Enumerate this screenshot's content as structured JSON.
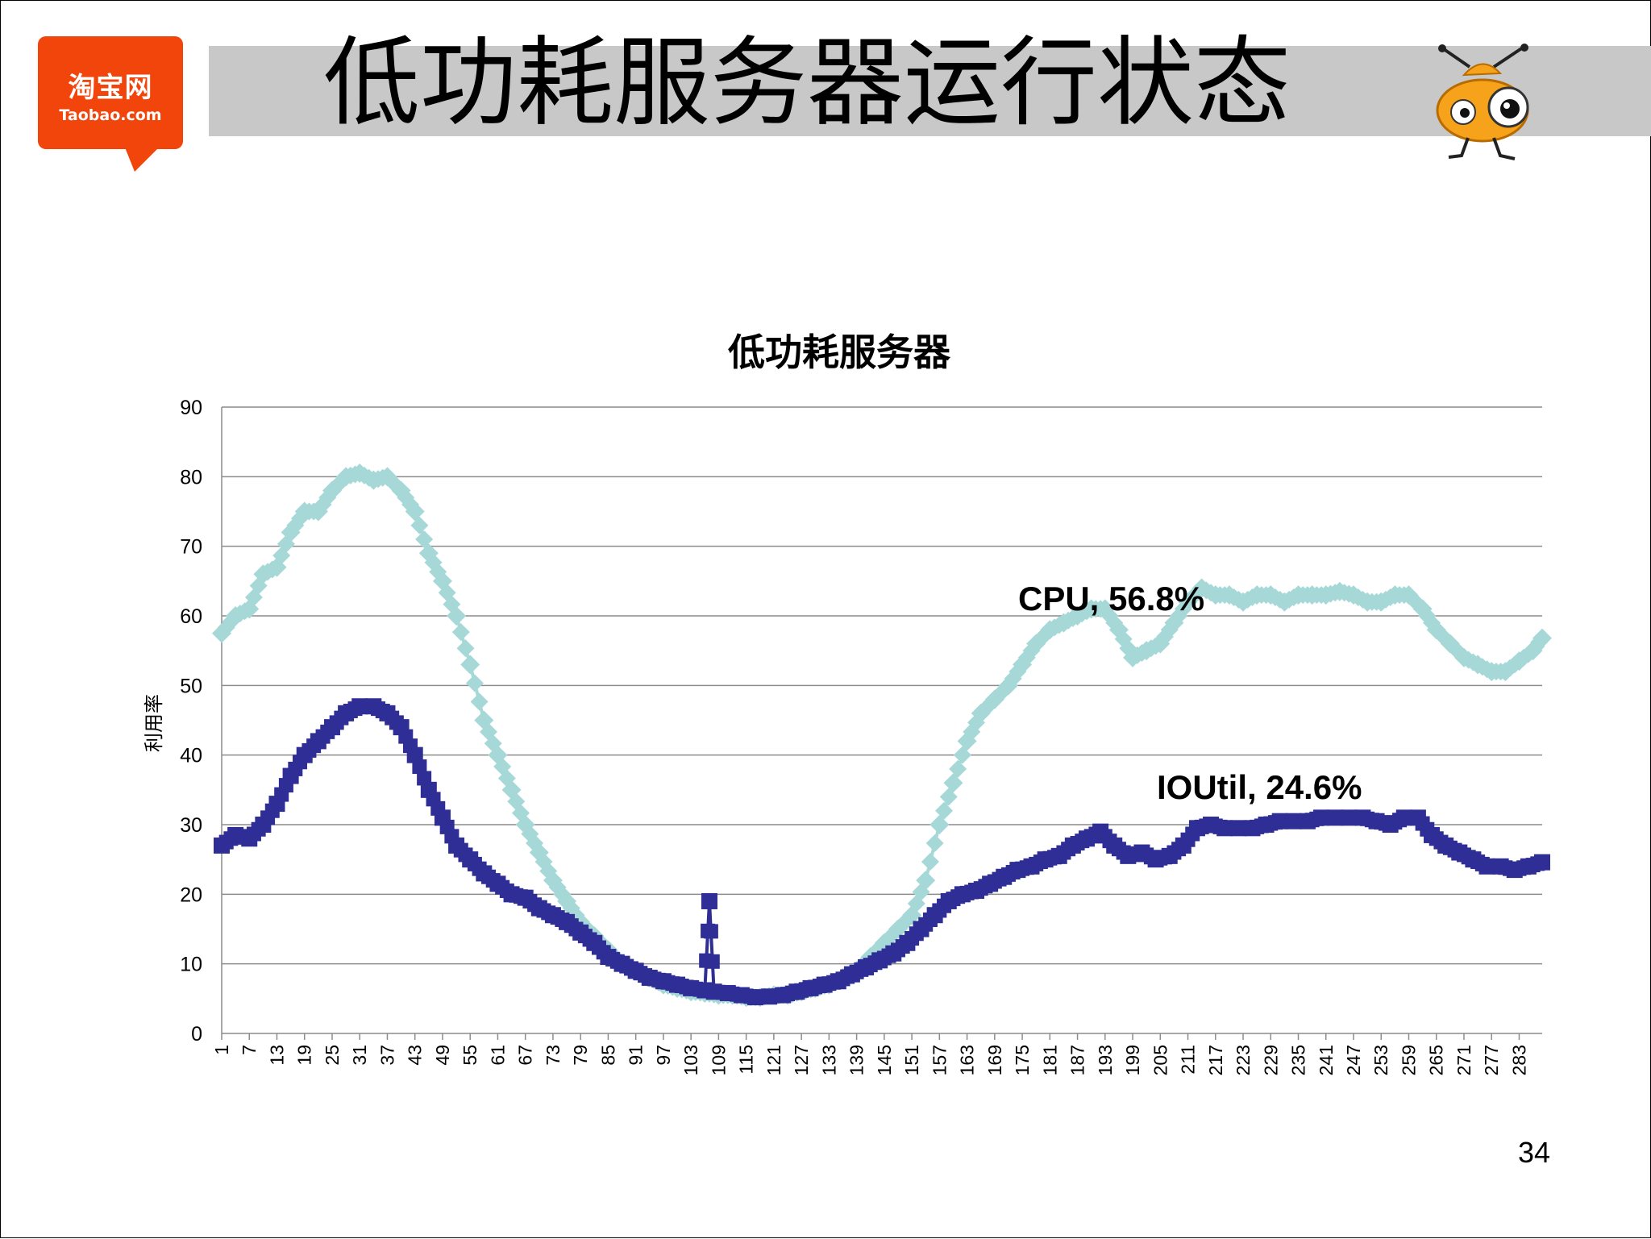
{
  "slide": {
    "title": "低功耗服务器运行状态",
    "page_number": "34",
    "logo": {
      "cn": "淘宝网",
      "en": "Taobao.com",
      "color": "#f2450c"
    },
    "mascot_icon": "ant-mascot-icon"
  },
  "chart_data": {
    "type": "line",
    "title": "低功耗服务器",
    "xlabel": "",
    "ylabel": "利用率",
    "ylim": [
      0,
      90
    ],
    "yticks": [
      0,
      10,
      20,
      30,
      40,
      50,
      60,
      70,
      80,
      90
    ],
    "xlim": [
      1,
      288
    ],
    "xticks": [
      1,
      7,
      13,
      19,
      25,
      31,
      37,
      43,
      49,
      55,
      61,
      67,
      73,
      79,
      85,
      91,
      97,
      103,
      109,
      115,
      121,
      127,
      133,
      139,
      145,
      151,
      157,
      163,
      169,
      175,
      181,
      187,
      193,
      199,
      205,
      211,
      217,
      223,
      229,
      235,
      241,
      247,
      253,
      259,
      265,
      271,
      277,
      283
    ],
    "grid": true,
    "legend": "none",
    "series": [
      {
        "name": "CPU",
        "color": "#a6d8d8",
        "marker": "diamond",
        "label": "CPU, 56.8%",
        "points": [
          [
            1,
            57.5
          ],
          [
            4,
            60
          ],
          [
            7,
            61
          ],
          [
            10,
            66
          ],
          [
            13,
            67
          ],
          [
            16,
            72
          ],
          [
            19,
            75
          ],
          [
            22,
            75
          ],
          [
            25,
            78
          ],
          [
            28,
            80
          ],
          [
            31,
            80.5
          ],
          [
            34,
            79.5
          ],
          [
            37,
            80
          ],
          [
            40,
            78
          ],
          [
            43,
            75
          ],
          [
            46,
            69
          ],
          [
            49,
            65
          ],
          [
            52,
            60
          ],
          [
            55,
            53
          ],
          [
            58,
            45
          ],
          [
            61,
            40
          ],
          [
            64,
            35
          ],
          [
            67,
            30
          ],
          [
            70,
            26
          ],
          [
            73,
            22
          ],
          [
            76,
            19
          ],
          [
            79,
            16
          ],
          [
            82,
            14
          ],
          [
            85,
            12
          ],
          [
            88,
            10
          ],
          [
            91,
            9
          ],
          [
            94,
            8
          ],
          [
            97,
            7
          ],
          [
            100,
            6.5
          ],
          [
            103,
            6
          ],
          [
            106,
            5.8
          ],
          [
            109,
            5.5
          ],
          [
            112,
            5.5
          ],
          [
            115,
            5.2
          ],
          [
            118,
            5.2
          ],
          [
            121,
            5.5
          ],
          [
            124,
            5.5
          ],
          [
            127,
            6
          ],
          [
            130,
            6.5
          ],
          [
            133,
            7
          ],
          [
            136,
            8
          ],
          [
            139,
            9
          ],
          [
            142,
            11
          ],
          [
            145,
            13
          ],
          [
            148,
            15
          ],
          [
            151,
            17
          ],
          [
            154,
            22
          ],
          [
            157,
            30
          ],
          [
            160,
            36
          ],
          [
            163,
            42
          ],
          [
            166,
            46
          ],
          [
            169,
            48
          ],
          [
            172,
            50
          ],
          [
            175,
            53
          ],
          [
            178,
            56
          ],
          [
            181,
            58
          ],
          [
            184,
            59
          ],
          [
            187,
            60
          ],
          [
            190,
            61
          ],
          [
            193,
            61
          ],
          [
            196,
            58
          ],
          [
            199,
            54
          ],
          [
            202,
            55
          ],
          [
            205,
            56
          ],
          [
            208,
            59
          ],
          [
            211,
            62
          ],
          [
            214,
            64
          ],
          [
            217,
            63
          ],
          [
            220,
            63
          ],
          [
            223,
            62
          ],
          [
            226,
            63
          ],
          [
            229,
            63
          ],
          [
            232,
            62
          ],
          [
            235,
            63
          ],
          [
            238,
            63
          ],
          [
            241,
            63
          ],
          [
            244,
            63.5
          ],
          [
            247,
            63
          ],
          [
            250,
            62
          ],
          [
            253,
            62
          ],
          [
            256,
            63
          ],
          [
            259,
            63
          ],
          [
            262,
            61
          ],
          [
            265,
            58
          ],
          [
            268,
            56
          ],
          [
            271,
            54
          ],
          [
            274,
            53
          ],
          [
            277,
            52
          ],
          [
            280,
            52
          ],
          [
            283,
            53.5
          ],
          [
            286,
            55
          ],
          [
            288,
            56.8
          ]
        ]
      },
      {
        "name": "IOUtil",
        "color": "#2e2e96",
        "marker": "square",
        "label": "IOUtil, 24.6%",
        "points": [
          [
            1,
            27
          ],
          [
            4,
            28.5
          ],
          [
            7,
            28
          ],
          [
            10,
            30
          ],
          [
            13,
            33
          ],
          [
            16,
            37
          ],
          [
            19,
            40
          ],
          [
            22,
            42
          ],
          [
            25,
            44
          ],
          [
            28,
            46
          ],
          [
            31,
            47
          ],
          [
            34,
            47
          ],
          [
            37,
            46
          ],
          [
            40,
            44
          ],
          [
            43,
            40
          ],
          [
            46,
            35
          ],
          [
            49,
            31
          ],
          [
            52,
            27
          ],
          [
            55,
            25
          ],
          [
            58,
            23
          ],
          [
            61,
            21.5
          ],
          [
            64,
            20
          ],
          [
            67,
            19.5
          ],
          [
            70,
            18
          ],
          [
            73,
            17
          ],
          [
            76,
            16
          ],
          [
            79,
            14.5
          ],
          [
            82,
            13
          ],
          [
            85,
            11
          ],
          [
            88,
            10
          ],
          [
            91,
            9
          ],
          [
            94,
            8
          ],
          [
            97,
            7.5
          ],
          [
            100,
            7
          ],
          [
            103,
            6.5
          ],
          [
            106,
            6.2
          ],
          [
            107,
            19
          ],
          [
            108,
            6
          ],
          [
            111,
            5.8
          ],
          [
            114,
            5.5
          ],
          [
            117,
            5.2
          ],
          [
            120,
            5.3
          ],
          [
            123,
            5.5
          ],
          [
            126,
            6
          ],
          [
            129,
            6.5
          ],
          [
            132,
            7
          ],
          [
            135,
            7.5
          ],
          [
            138,
            8.5
          ],
          [
            141,
            9.5
          ],
          [
            144,
            10.5
          ],
          [
            147,
            11.5
          ],
          [
            150,
            13
          ],
          [
            153,
            15
          ],
          [
            156,
            17
          ],
          [
            159,
            19
          ],
          [
            162,
            20
          ],
          [
            165,
            20.5
          ],
          [
            168,
            21.5
          ],
          [
            171,
            22.5
          ],
          [
            174,
            23.5
          ],
          [
            177,
            24
          ],
          [
            180,
            25
          ],
          [
            183,
            25.5
          ],
          [
            186,
            27
          ],
          [
            189,
            28
          ],
          [
            192,
            29
          ],
          [
            195,
            27
          ],
          [
            198,
            25.5
          ],
          [
            201,
            26
          ],
          [
            204,
            25
          ],
          [
            207,
            25.5
          ],
          [
            210,
            27
          ],
          [
            213,
            29.5
          ],
          [
            216,
            30
          ],
          [
            219,
            29.5
          ],
          [
            222,
            29.5
          ],
          [
            225,
            29.5
          ],
          [
            228,
            30
          ],
          [
            231,
            30.5
          ],
          [
            234,
            30.5
          ],
          [
            237,
            30.5
          ],
          [
            240,
            31
          ],
          [
            243,
            31
          ],
          [
            246,
            31
          ],
          [
            249,
            31
          ],
          [
            252,
            30.5
          ],
          [
            255,
            30
          ],
          [
            258,
            31
          ],
          [
            261,
            31
          ],
          [
            264,
            28.5
          ],
          [
            267,
            27
          ],
          [
            270,
            26
          ],
          [
            273,
            25
          ],
          [
            276,
            24
          ],
          [
            279,
            24
          ],
          [
            282,
            23.5
          ],
          [
            285,
            24
          ],
          [
            288,
            24.6
          ]
        ]
      }
    ]
  }
}
